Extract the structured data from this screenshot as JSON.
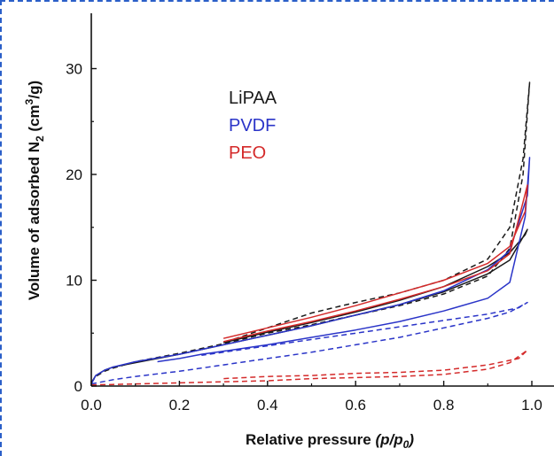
{
  "chart_data": {
    "type": "line",
    "xlabel": {
      "main": "Relative pressure ",
      "italic": "(p/p",
      "sub": "0",
      "close": ")"
    },
    "ylabel": {
      "prefix": "Volume of adsorbed N",
      "sub": "2",
      "mid": " (cm",
      "sup": "3",
      "suffix": "/g)"
    },
    "xlim": [
      0,
      1.04
    ],
    "ylim": [
      0,
      35
    ],
    "xticks": [
      "0.0",
      "0.2",
      "0.4",
      "0.6",
      "0.8",
      "1.0"
    ],
    "yticks": [
      "0",
      "10",
      "20",
      "30"
    ],
    "grid": false,
    "legend_position": "upper-left",
    "legend": [
      {
        "label": "LiPAA",
        "color": "#1a1a1a"
      },
      {
        "label": "PVDF",
        "color": "#2a34c8"
      },
      {
        "label": "PEO",
        "color": "#d42a2a"
      }
    ],
    "series": [
      {
        "color": "#1a1a1a",
        "dash": false,
        "x": [
          0.0,
          0.01,
          0.03,
          0.05,
          0.1,
          0.2,
          0.3,
          0.4,
          0.5,
          0.6,
          0.7,
          0.8,
          0.9,
          0.95,
          0.99,
          0.985,
          0.95,
          0.9,
          0.8,
          0.7,
          0.6,
          0.5,
          0.4,
          0.3
        ],
        "y": [
          0.3,
          1.0,
          1.5,
          1.8,
          2.2,
          3.0,
          3.9,
          4.8,
          5.7,
          6.7,
          7.7,
          8.9,
          10.6,
          11.9,
          14.8,
          14.3,
          12.6,
          11.3,
          9.4,
          8.1,
          7.0,
          6.0,
          5.1,
          4.1
        ]
      },
      {
        "color": "#1a1a1a",
        "dash": true,
        "x": [
          0.0,
          0.01,
          0.03,
          0.05,
          0.1,
          0.2,
          0.3,
          0.4,
          0.5,
          0.6,
          0.7,
          0.8,
          0.9,
          0.95,
          0.98,
          0.995,
          0.98,
          0.95,
          0.9,
          0.8,
          0.7,
          0.6,
          0.5,
          0.4,
          0.3
        ],
        "y": [
          0.3,
          0.9,
          1.4,
          1.7,
          2.3,
          3.1,
          4.0,
          5.0,
          5.8,
          6.7,
          7.6,
          8.7,
          10.4,
          13.0,
          20.0,
          28.7,
          21.5,
          15.0,
          12.0,
          10.0,
          8.8,
          7.9,
          6.9,
          5.5,
          4.1
        ]
      },
      {
        "color": "#2a34c8",
        "dash": false,
        "x": [
          0.0,
          0.01,
          0.03,
          0.05,
          0.1,
          0.2,
          0.3,
          0.4,
          0.5,
          0.6,
          0.7,
          0.8,
          0.9,
          0.95,
          0.99,
          0.995,
          0.985,
          0.95,
          0.9,
          0.8,
          0.7,
          0.6,
          0.5,
          0.4,
          0.3,
          0.25,
          0.2,
          0.15
        ],
        "y": [
          0.2,
          1.0,
          1.5,
          1.8,
          2.3,
          3.0,
          3.9,
          4.8,
          5.7,
          6.7,
          7.7,
          9.0,
          11.0,
          12.8,
          18.0,
          21.6,
          16.0,
          9.8,
          8.3,
          7.1,
          6.1,
          5.3,
          4.6,
          3.9,
          3.3,
          3.0,
          2.6,
          2.3
        ]
      },
      {
        "color": "#2a34c8",
        "dash": true,
        "x": [
          0.0,
          0.05,
          0.1,
          0.2,
          0.3,
          0.4,
          0.5,
          0.6,
          0.7,
          0.8,
          0.9,
          0.95,
          0.99,
          0.97,
          0.9,
          0.8,
          0.7,
          0.6,
          0.5,
          0.4,
          0.3,
          0.25
        ],
        "y": [
          0.2,
          0.6,
          0.9,
          1.4,
          2.0,
          2.6,
          3.2,
          3.9,
          4.6,
          5.5,
          6.4,
          7.0,
          7.9,
          7.4,
          6.8,
          6.2,
          5.6,
          5.0,
          4.4,
          3.8,
          3.2,
          2.9
        ]
      },
      {
        "color": "#d42a2a",
        "dash": false,
        "x": [
          0.3,
          0.4,
          0.5,
          0.6,
          0.7,
          0.8,
          0.9,
          0.95,
          0.99,
          0.985,
          0.95,
          0.9,
          0.8,
          0.7,
          0.6,
          0.5,
          0.4,
          0.3
        ],
        "y": [
          4.2,
          5.2,
          6.1,
          7.1,
          8.2,
          9.4,
          10.9,
          12.5,
          19.0,
          16.5,
          13.2,
          11.6,
          10.0,
          8.8,
          7.6,
          6.5,
          5.5,
          4.5
        ]
      },
      {
        "color": "#d42a2a",
        "dash": true,
        "x": [
          0.0,
          0.1,
          0.2,
          0.3,
          0.4,
          0.5,
          0.6,
          0.7,
          0.8,
          0.9,
          0.95,
          0.99,
          0.97,
          0.9,
          0.8,
          0.7,
          0.6,
          0.5,
          0.4,
          0.3
        ],
        "y": [
          0.1,
          0.2,
          0.3,
          0.4,
          0.5,
          0.7,
          0.8,
          0.9,
          1.1,
          1.6,
          2.2,
          3.4,
          2.6,
          2.0,
          1.5,
          1.3,
          1.2,
          1.0,
          0.9,
          0.7
        ]
      }
    ]
  }
}
